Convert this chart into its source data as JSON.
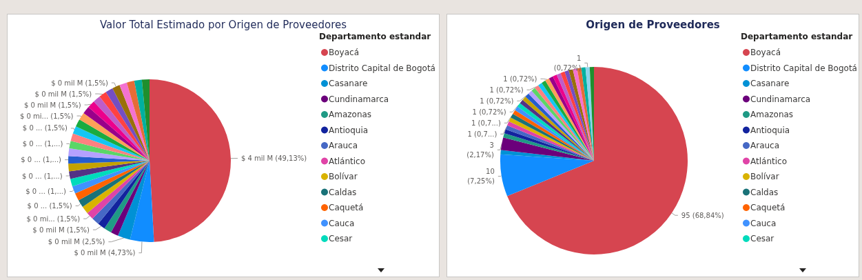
{
  "chart_data": [
    {
      "type": "pie",
      "title": "Valor Total Estimado por Origen de Proveedores",
      "legend_title": "Departamento estandar",
      "legend": "right",
      "categories": [
        "Boyacá",
        "Distrito Capital de Bogotá",
        "Casanare",
        "Cundinamarca",
        "Amazonas",
        "Antioquia",
        "Arauca",
        "Atlántico",
        "Bolívar",
        "Caldas",
        "Caquetá",
        "Cauca",
        "Cesar",
        null,
        null,
        null,
        null,
        null,
        null,
        null,
        null,
        null,
        null,
        null,
        null,
        null,
        null,
        null,
        null,
        null,
        null,
        null
      ],
      "values": [
        49.13,
        4.73,
        2.5,
        1.505,
        1.505,
        1.505,
        1.505,
        1.505,
        1.505,
        1.505,
        1.505,
        1.505,
        1.505,
        1.505,
        1.505,
        1.505,
        1.505,
        1.505,
        1.505,
        1.505,
        1.505,
        1.505,
        1.505,
        1.505,
        1.505,
        1.505,
        1.505,
        1.505,
        1.505,
        1.505,
        1.505,
        1.505
      ],
      "colors": [
        "#d64550",
        "#118dff",
        "#0091d5",
        "#6b007b",
        "#1f9a85",
        "#12239e",
        "#4668c5",
        "#e044a7",
        "#d9b300",
        "#197278",
        "#ff6300",
        "#4092ff",
        "#00dbbc",
        "#533285",
        "#c4a200",
        "#255dcd",
        "#b5a1ff",
        "#5bd667",
        "#ff8080",
        "#15c6f4",
        "#1aab40",
        "#ffa058",
        "#99008a",
        "#ec008c",
        "#be5dc9",
        "#ff4141",
        "#744ec2",
        "#99700a",
        "#f472d0",
        "#e66c37",
        "#00b0a0",
        "#1f8f2e"
      ],
      "value_labels": [
        "$ 4 mil M (49,13%)",
        "$ 0 mil M (4,73%)",
        "$ 0 mil M (2,5%)",
        null,
        null,
        "$ 0 mil M (1,5%)",
        null,
        "$ 0 mi... (1,5%)",
        null,
        "$ 0 ... (1,5%)",
        null,
        "$ 0 ... (1,...)",
        null,
        "$ 0 ... (1,...)",
        null,
        "$ 0 ... (1,...)",
        null,
        "$ 0 ... (1,...)",
        null,
        "$ 0 ... (1,5%)",
        null,
        "$ 0 mi... (1,5%)",
        null,
        "$ 0 mil M (1,5%)",
        null,
        "$ 0 mil M (1,5%)",
        null,
        "$ 0 mil M (1,5%)",
        null,
        null,
        null,
        null
      ]
    },
    {
      "type": "pie",
      "title": "Origen de Proveedores",
      "legend_title": "Departamento estandar",
      "legend": "right",
      "categories": [
        "Boyacá",
        "Distrito Capital de Bogotá",
        "Casanare",
        "Cundinamarca",
        "Amazonas",
        "Antioquia",
        "Arauca",
        "Atlántico",
        "Bolívar",
        "Caldas",
        "Caquetá",
        "Cauca",
        "Cesar",
        null,
        null,
        null,
        null,
        null,
        null,
        null,
        null,
        null,
        null,
        null,
        null,
        null,
        null,
        null,
        null,
        null,
        null,
        null,
        null
      ],
      "values": [
        95,
        10,
        1,
        3,
        1,
        1,
        1,
        1,
        1,
        1,
        1,
        1,
        1,
        1,
        1,
        1,
        1,
        1,
        1,
        1,
        1,
        1,
        1,
        1,
        1,
        1,
        1,
        1,
        1,
        1,
        1,
        1,
        1
      ],
      "colors": [
        "#d64550",
        "#118dff",
        "#0091d5",
        "#6b007b",
        "#1f9a85",
        "#12239e",
        "#4668c5",
        "#e044a7",
        "#d9b300",
        "#197278",
        "#ff6300",
        "#4092ff",
        "#00dbbc",
        "#533285",
        "#c4a200",
        "#255dcd",
        "#b5a1ff",
        "#5bd667",
        "#ff8080",
        "#15c6f4",
        "#1aab40",
        "#ffa058",
        "#99008a",
        "#ec008c",
        "#be5dc9",
        "#ff4141",
        "#744ec2",
        "#99700a",
        "#f472d0",
        "#e66c37",
        "#00b0a0",
        "#8ad4eb",
        "#1f8f2e"
      ],
      "value_labels": [
        "95 (68,84%)",
        "10\n(7,25%)",
        null,
        "3\n(2,17%)",
        null,
        null,
        "1 (0,7...)",
        null,
        null,
        "1 (0,7...)",
        null,
        null,
        "1 (0,72%)",
        null,
        null,
        "1 (0,72%)",
        null,
        null,
        "1 (0,72%)",
        null,
        null,
        "1 (0,72%)",
        null,
        null,
        null,
        null,
        null,
        null,
        null,
        null,
        null,
        "1\n(0,72%)",
        null
      ]
    }
  ]
}
